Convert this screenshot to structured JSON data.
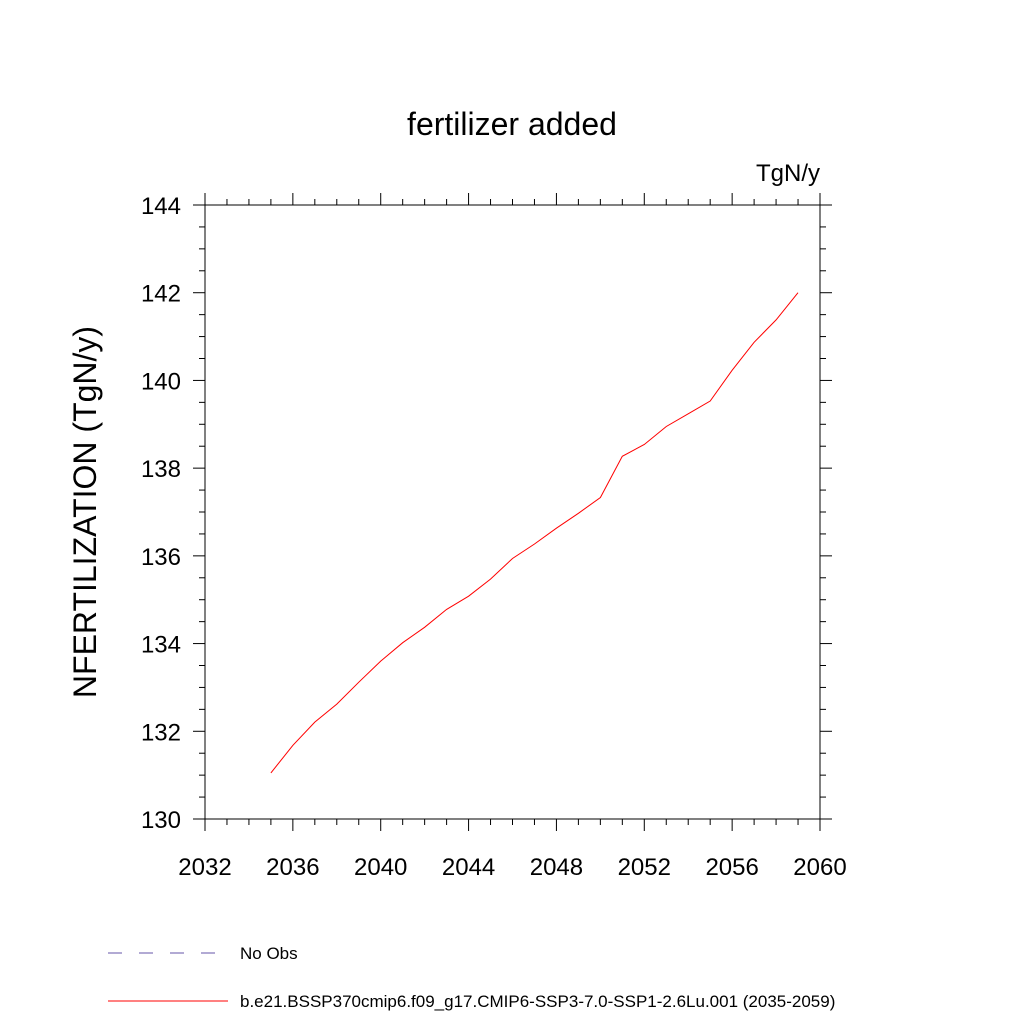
{
  "chart_data": {
    "type": "line",
    "title": "fertilizer added",
    "units_label": "TgN/y",
    "ylabel": "NFERTILIZATION  (TgN/y)",
    "xlabel": "",
    "xlim": [
      2032,
      2060
    ],
    "ylim": [
      130,
      144
    ],
    "x_ticks": [
      2032,
      2036,
      2040,
      2044,
      2048,
      2052,
      2056,
      2060
    ],
    "y_ticks": [
      130,
      132,
      134,
      136,
      138,
      140,
      142,
      144
    ],
    "grid": false,
    "legend_position": "bottom",
    "series": [
      {
        "name": "b.e21.BSSP370cmip6.f09_g17.CMIP6-SSP3-7.0-SSP1-2.6Lu.001 (2035-2059)",
        "color": "#ff0000",
        "style": "solid",
        "x": [
          2035,
          2036,
          2037,
          2038,
          2039,
          2040,
          2041,
          2042,
          2043,
          2044,
          2045,
          2046,
          2047,
          2048,
          2049,
          2050,
          2051,
          2052,
          2053,
          2054,
          2055,
          2056,
          2057,
          2058,
          2059
        ],
        "y": [
          131.05,
          131.68,
          132.21,
          132.62,
          133.12,
          133.6,
          134.02,
          134.37,
          134.78,
          135.08,
          135.47,
          135.94,
          136.27,
          136.63,
          136.97,
          137.33,
          138.27,
          138.54,
          138.95,
          139.24,
          139.53,
          140.23,
          140.87,
          141.38,
          142.0
        ]
      }
    ],
    "legend": [
      {
        "label": "No Obs",
        "color": "#6655aa",
        "style": "dashed"
      },
      {
        "label": "b.e21.BSSP370cmip6.f09_g17.CMIP6-SSP3-7.0-SSP1-2.6Lu.001 (2035-2059)",
        "color": "#ff0000",
        "style": "solid"
      }
    ]
  }
}
